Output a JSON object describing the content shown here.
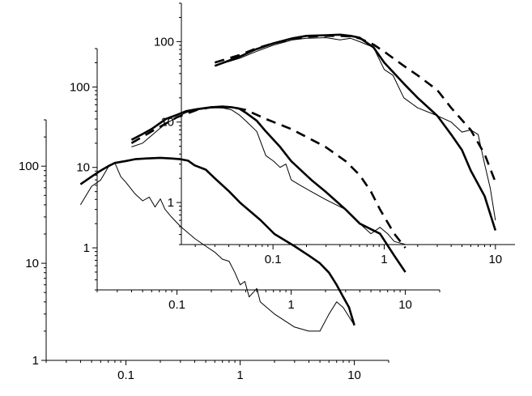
{
  "chart_data": [
    {
      "type": "line",
      "scale": {
        "x": "log",
        "y": "log"
      },
      "xlim": [
        0.02,
        20
      ],
      "ylim": [
        1,
        300
      ],
      "x_ticks": [
        {
          "v": 0.1,
          "label": "0.1"
        },
        {
          "v": 1,
          "label": "1"
        },
        {
          "v": 10,
          "label": "10"
        }
      ],
      "y_ticks": [
        {
          "v": 1,
          "label": "1"
        },
        {
          "v": 10,
          "label": "10"
        },
        {
          "v": 100,
          "label": "100"
        }
      ],
      "series": [
        {
          "style": "thin",
          "points": [
            [
              0.04,
              40
            ],
            [
              0.05,
              62
            ],
            [
              0.06,
              72
            ],
            [
              0.07,
              98
            ],
            [
              0.08,
              108
            ],
            [
              0.09,
              78
            ],
            [
              0.1,
              68
            ],
            [
              0.12,
              52
            ],
            [
              0.14,
              44
            ],
            [
              0.16,
              48
            ],
            [
              0.18,
              38
            ],
            [
              0.2,
              46
            ],
            [
              0.22,
              36
            ],
            [
              0.25,
              30
            ],
            [
              0.3,
              24
            ],
            [
              0.4,
              18
            ],
            [
              0.5,
              15
            ],
            [
              0.6,
              13
            ],
            [
              0.7,
              11
            ],
            [
              0.8,
              10.5
            ],
            [
              0.9,
              8
            ],
            [
              1.0,
              6
            ],
            [
              1.1,
              6.5
            ],
            [
              1.2,
              4.5
            ],
            [
              1.4,
              5.5
            ],
            [
              1.5,
              4
            ],
            [
              2.0,
              3
            ],
            [
              3.0,
              2.2
            ],
            [
              4.0,
              2
            ],
            [
              5.0,
              2
            ],
            [
              6.0,
              3.0
            ],
            [
              7.0,
              4.0
            ],
            [
              8.0,
              3.5
            ],
            [
              10.0,
              2.3
            ]
          ]
        },
        {
          "style": "thick",
          "points": [
            [
              0.04,
              65
            ],
            [
              0.05,
              78
            ],
            [
              0.06,
              90
            ],
            [
              0.07,
              100
            ],
            [
              0.08,
              108
            ],
            [
              0.1,
              113
            ],
            [
              0.12,
              118
            ],
            [
              0.15,
              120
            ],
            [
              0.2,
              122
            ],
            [
              0.25,
              120
            ],
            [
              0.3,
              118
            ],
            [
              0.35,
              114
            ],
            [
              0.4,
              102
            ],
            [
              0.5,
              92
            ],
            [
              0.6,
              75
            ],
            [
              0.8,
              55
            ],
            [
              1.0,
              42
            ],
            [
              1.5,
              28
            ],
            [
              2.0,
              20
            ],
            [
              3.0,
              15
            ],
            [
              4.0,
              12
            ],
            [
              5.0,
              10
            ],
            [
              6.0,
              8
            ],
            [
              7.0,
              6
            ],
            [
              8.0,
              4.5
            ],
            [
              9.0,
              3.5
            ],
            [
              10.0,
              2.3
            ]
          ]
        }
      ]
    },
    {
      "type": "line",
      "scale": {
        "x": "log",
        "y": "log"
      },
      "xlim": [
        0.02,
        20
      ],
      "ylim": [
        0.3,
        300
      ],
      "x_ticks": [
        {
          "v": 0.1,
          "label": "0.1"
        },
        {
          "v": 1,
          "label": "1"
        },
        {
          "v": 10,
          "label": "10"
        }
      ],
      "y_ticks": [
        {
          "v": 1,
          "label": "1"
        },
        {
          "v": 10,
          "label": "10"
        },
        {
          "v": 100,
          "label": "100"
        }
      ],
      "series": [
        {
          "style": "thin",
          "points": [
            [
              0.04,
              18
            ],
            [
              0.05,
              20
            ],
            [
              0.06,
              25
            ],
            [
              0.07,
              30
            ],
            [
              0.08,
              35
            ],
            [
              0.1,
              42
            ],
            [
              0.12,
              48
            ],
            [
              0.15,
              52
            ],
            [
              0.2,
              55
            ],
            [
              0.25,
              55
            ],
            [
              0.3,
              52
            ],
            [
              0.35,
              45
            ],
            [
              0.4,
              38
            ],
            [
              0.5,
              28
            ],
            [
              0.6,
              14
            ],
            [
              0.7,
              12
            ],
            [
              0.8,
              10
            ],
            [
              0.9,
              11
            ],
            [
              1.0,
              7
            ],
            [
              1.2,
              6
            ],
            [
              1.5,
              5
            ],
            [
              2.0,
              4
            ],
            [
              3.0,
              3
            ],
            [
              4.0,
              2
            ],
            [
              5.0,
              1.5
            ],
            [
              6.0,
              1.8
            ],
            [
              7.0,
              1.5
            ],
            [
              8.0,
              1.2
            ],
            [
              10.0,
              1.1
            ]
          ]
        },
        {
          "style": "thick",
          "points": [
            [
              0.04,
              22
            ],
            [
              0.05,
              26
            ],
            [
              0.06,
              30
            ],
            [
              0.07,
              35
            ],
            [
              0.08,
              40
            ],
            [
              0.1,
              45
            ],
            [
              0.12,
              50
            ],
            [
              0.15,
              53
            ],
            [
              0.2,
              56
            ],
            [
              0.25,
              57
            ],
            [
              0.3,
              56
            ],
            [
              0.35,
              54
            ],
            [
              0.4,
              48
            ],
            [
              0.5,
              38
            ],
            [
              0.6,
              28
            ],
            [
              0.8,
              18
            ],
            [
              1.0,
              12
            ],
            [
              1.5,
              7
            ],
            [
              2.0,
              5
            ],
            [
              3.0,
              3
            ],
            [
              4.0,
              2
            ],
            [
              6.0,
              1.5
            ],
            [
              8.0,
              0.8
            ],
            [
              10.0,
              0.5
            ]
          ]
        },
        {
          "style": "dashed",
          "points": [
            [
              0.04,
              20
            ],
            [
              0.06,
              28
            ],
            [
              0.1,
              42
            ],
            [
              0.15,
              52
            ],
            [
              0.2,
              56
            ],
            [
              0.3,
              56
            ],
            [
              0.4,
              52
            ],
            [
              0.6,
              40
            ],
            [
              1.0,
              30
            ],
            [
              2.0,
              18
            ],
            [
              3.0,
              12
            ],
            [
              4.0,
              8
            ],
            [
              5.0,
              5
            ],
            [
              6.0,
              3
            ],
            [
              8.0,
              1.5
            ],
            [
              10.0,
              1
            ]
          ]
        }
      ]
    },
    {
      "type": "line",
      "scale": {
        "x": "log",
        "y": "log"
      },
      "xlim": [
        0.015,
        15
      ],
      "ylim": [
        0.3,
        300
      ],
      "x_ticks": [
        {
          "v": 0.1,
          "label": "0.1"
        },
        {
          "v": 1,
          "label": "1"
        },
        {
          "v": 10,
          "label": "10"
        }
      ],
      "y_ticks": [
        {
          "v": 1,
          "label": "1"
        },
        {
          "v": 10,
          "label": "10"
        },
        {
          "v": 100,
          "label": "100"
        }
      ],
      "series": [
        {
          "style": "thin",
          "points": [
            [
              0.03,
              50
            ],
            [
              0.05,
              62
            ],
            [
              0.07,
              75
            ],
            [
              0.1,
              90
            ],
            [
              0.15,
              105
            ],
            [
              0.2,
              110
            ],
            [
              0.3,
              112
            ],
            [
              0.4,
              105
            ],
            [
              0.5,
              110
            ],
            [
              0.6,
              100
            ],
            [
              0.8,
              85
            ],
            [
              1.0,
              45
            ],
            [
              1.2,
              38
            ],
            [
              1.5,
              20
            ],
            [
              2.0,
              15
            ],
            [
              3.0,
              12
            ],
            [
              4.0,
              10
            ],
            [
              5.0,
              7.5
            ],
            [
              6.0,
              8
            ],
            [
              7.0,
              7
            ],
            [
              8.0,
              3
            ],
            [
              9.0,
              1.5
            ],
            [
              10.0,
              0.6
            ]
          ]
        },
        {
          "style": "thick",
          "points": [
            [
              0.03,
              50
            ],
            [
              0.05,
              65
            ],
            [
              0.07,
              80
            ],
            [
              0.1,
              95
            ],
            [
              0.15,
              110
            ],
            [
              0.2,
              118
            ],
            [
              0.3,
              120
            ],
            [
              0.4,
              122
            ],
            [
              0.5,
              118
            ],
            [
              0.6,
              112
            ],
            [
              0.8,
              85
            ],
            [
              1.0,
              55
            ],
            [
              1.5,
              30
            ],
            [
              2.0,
              20
            ],
            [
              3.0,
              12
            ],
            [
              4.0,
              7
            ],
            [
              5.0,
              4.5
            ],
            [
              6.0,
              2.5
            ],
            [
              8.0,
              1.2
            ],
            [
              10.0,
              0.45
            ]
          ]
        },
        {
          "style": "dashed",
          "points": [
            [
              0.03,
              55
            ],
            [
              0.05,
              68
            ],
            [
              0.07,
              82
            ],
            [
              0.1,
              95
            ],
            [
              0.15,
              108
            ],
            [
              0.2,
              115
            ],
            [
              0.3,
              118
            ],
            [
              0.4,
              118
            ],
            [
              0.5,
              116
            ],
            [
              0.6,
              110
            ],
            [
              0.8,
              92
            ],
            [
              1.0,
              75
            ],
            [
              1.5,
              50
            ],
            [
              2.0,
              38
            ],
            [
              3.0,
              25
            ],
            [
              4.0,
              15
            ],
            [
              6.0,
              8
            ],
            [
              8.0,
              4
            ],
            [
              10.0,
              1.8
            ]
          ]
        }
      ]
    }
  ]
}
